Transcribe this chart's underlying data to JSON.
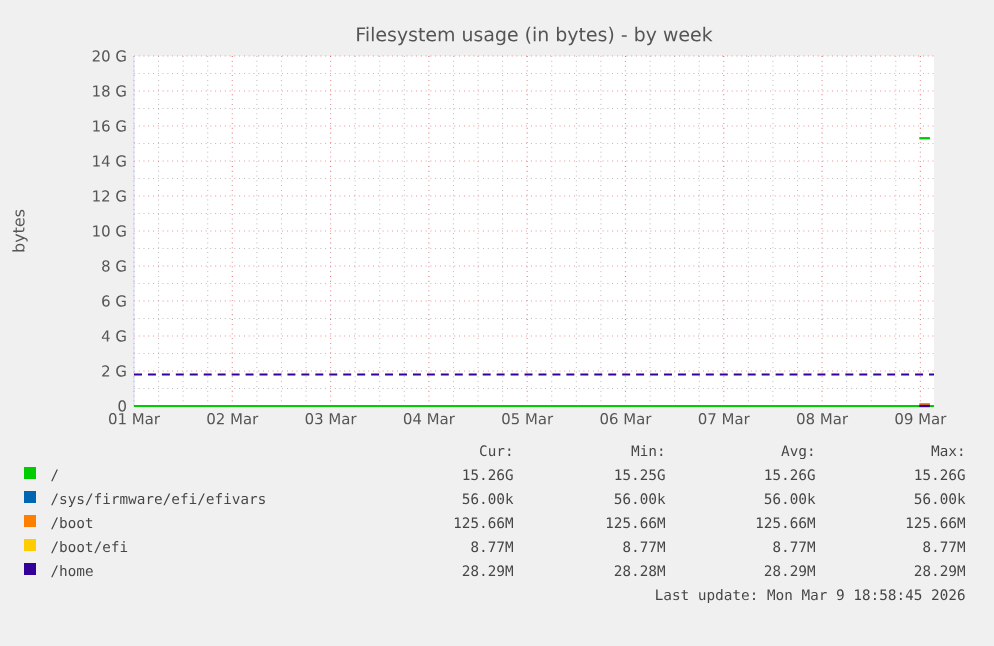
{
  "chart_data": {
    "type": "line",
    "title": "Filesystem usage (in bytes) - by week",
    "ylabel": "bytes",
    "x": [
      "2026-03-08T23:45",
      "2026-03-09T02:20"
    ],
    "xlim": [
      "2026-03-01",
      "2026-03-09T03:20"
    ],
    "xticks": [
      {
        "value": "2026-03-01",
        "label": "01 Mar"
      },
      {
        "value": "2026-03-02",
        "label": "02 Mar"
      },
      {
        "value": "2026-03-03",
        "label": "03 Mar"
      },
      {
        "value": "2026-03-04",
        "label": "04 Mar"
      },
      {
        "value": "2026-03-05",
        "label": "05 Mar"
      },
      {
        "value": "2026-03-06",
        "label": "06 Mar"
      },
      {
        "value": "2026-03-07",
        "label": "07 Mar"
      },
      {
        "value": "2026-03-08",
        "label": "08 Mar"
      },
      {
        "value": "2026-03-09",
        "label": "09 Mar"
      }
    ],
    "ylim": [
      0,
      20
    ],
    "yticks": [
      {
        "value": 0,
        "label": "0"
      },
      {
        "value": 2,
        "label": "2 G"
      },
      {
        "value": 4,
        "label": "4 G"
      },
      {
        "value": 6,
        "label": "6 G"
      },
      {
        "value": 8,
        "label": "8 G"
      },
      {
        "value": 10,
        "label": "10 G"
      },
      {
        "value": 12,
        "label": "12 G"
      },
      {
        "value": 14,
        "label": "14 G"
      },
      {
        "value": 16,
        "label": "16 G"
      },
      {
        "value": 18,
        "label": "18 G"
      },
      {
        "value": 20,
        "label": "20 G"
      }
    ],
    "series": [
      {
        "name": "/",
        "color": "#00cc00",
        "values": [
          15.3,
          15.3
        ]
      },
      {
        "name": "/sys/firmware/efi/efivars",
        "color": "#0066b3",
        "values": [
          null,
          null
        ]
      },
      {
        "name": "/boot",
        "color": "#ff8000",
        "values": [
          0.1,
          0.1
        ]
      },
      {
        "name": "/boot/efi",
        "color": "#ffcc00",
        "values": [
          null,
          null
        ]
      },
      {
        "name": "/home",
        "color": "#330099",
        "values": [
          0,
          0
        ]
      }
    ],
    "ref_lines": [
      {
        "axis": "y",
        "value": 0,
        "color": "#00cc00",
        "line_style": "solid"
      },
      {
        "axis": "y",
        "value": 1.8,
        "color": "#330099",
        "line_style": "dashed"
      }
    ],
    "annotations": [
      "Cur:",
      "Min:",
      "Avg:",
      "Max:",
      "15.26G",
      "15.25G",
      "15.26G",
      "15.26G",
      "56.00k",
      "56.00k",
      "56.00k",
      "56.00k",
      "125.66M",
      "125.66M",
      "125.66M",
      "125.66M",
      "8.77M",
      "8.77M",
      "8.77M",
      "8.77M",
      "28.29M",
      "28.28M",
      "28.29M",
      "28.29M",
      "Last update: Mon Mar  9 18:58:45 2026"
    ],
    "grid": true,
    "legend": "bottom",
    "marker": "none",
    "line_style": "solid"
  }
}
